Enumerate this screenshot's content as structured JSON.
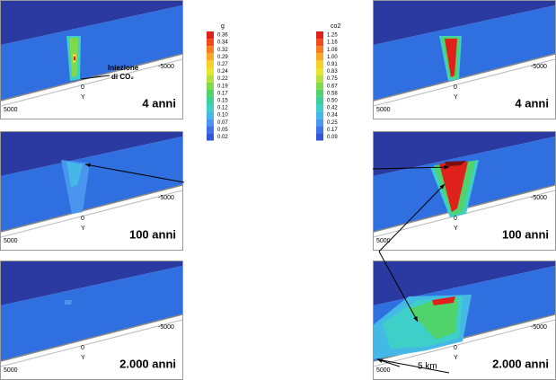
{
  "colorbars": [
    {
      "title": "g",
      "ticks": [
        "0.36",
        "0.34",
        "0.32",
        "0.29",
        "0.27",
        "0.24",
        "0.22",
        "0.19",
        "0.17",
        "0.15",
        "0.12",
        "0.10",
        "0.07",
        "0.05",
        "0.02"
      ]
    },
    {
      "title": "co2",
      "ticks": [
        "1.25",
        "1.16",
        "1.08",
        "1.00",
        "0.91",
        "0.83",
        "0.75",
        "0.67",
        "0.58",
        "0.50",
        "0.42",
        "0.34",
        "0.25",
        "0.17",
        "0.09"
      ]
    }
  ],
  "axis": {
    "x_left": "5000",
    "x_right": "-5000",
    "origin": "0",
    "y": "Y"
  },
  "panels": [
    {
      "label": "4 anni"
    },
    {
      "label": "100 anni"
    },
    {
      "label": "2.000 anni"
    },
    {
      "label": "4 anni"
    },
    {
      "label": "100 anni"
    },
    {
      "label": "2.000 anni"
    }
  ],
  "annotation": {
    "line1": "Iniezione",
    "line2": "di CO₂"
  },
  "scale": "5 km"
}
